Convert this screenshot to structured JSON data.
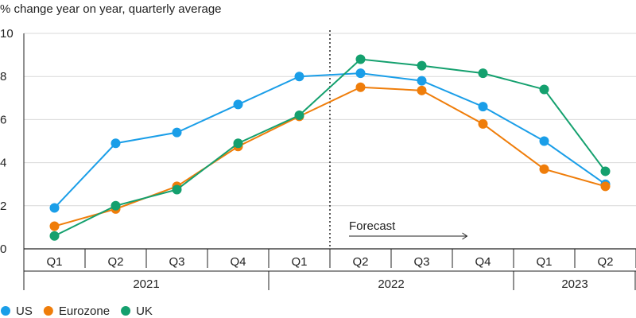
{
  "chart_data": {
    "type": "line",
    "ylabel": "% change year on year, quarterly average",
    "ylim": [
      0,
      10
    ],
    "yticks": [
      0,
      2,
      4,
      6,
      8,
      10
    ],
    "grid": true,
    "categories": [
      "Q1",
      "Q2",
      "Q3",
      "Q4",
      "Q1",
      "Q2",
      "Q3",
      "Q4",
      "Q1",
      "Q2"
    ],
    "years": [
      {
        "label": "2021",
        "span": 4
      },
      {
        "label": "2022",
        "span": 4
      },
      {
        "label": "2023",
        "span": 2
      }
    ],
    "forecast_label": "Forecast",
    "legend_position": "bottom-left",
    "series": [
      {
        "name": "US",
        "color": "#1a9ee8",
        "values": [
          1.9,
          4.9,
          5.4,
          6.7,
          8.0,
          8.15,
          7.8,
          6.6,
          5.0,
          3.0
        ]
      },
      {
        "name": "Eurozone",
        "color": "#ef7d0a",
        "values": [
          1.05,
          1.85,
          2.9,
          4.75,
          6.15,
          7.5,
          7.35,
          5.8,
          3.7,
          2.9
        ]
      },
      {
        "name": "UK",
        "color": "#14a06e",
        "values": [
          0.6,
          2.0,
          2.75,
          4.9,
          6.2,
          8.8,
          8.5,
          8.15,
          7.4,
          3.6
        ]
      }
    ]
  }
}
